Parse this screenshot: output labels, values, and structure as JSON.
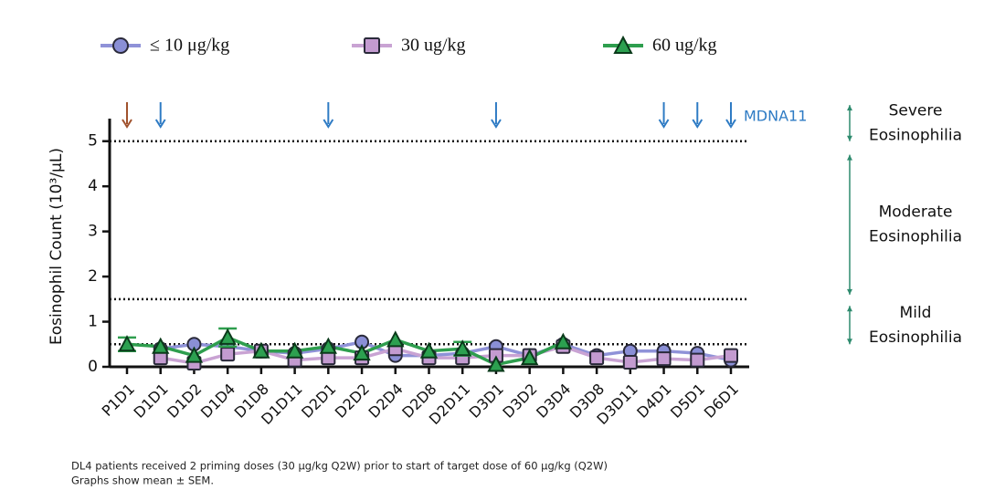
{
  "chart_data": {
    "type": "line",
    "y_label": "Eosinophil Count (10³/μL)",
    "categories": [
      "P1D1",
      "D1D1",
      "D1D2",
      "D1D4",
      "D1D8",
      "D1D11",
      "D2D1",
      "D2D2",
      "D2D4",
      "D2D8",
      "D2D11",
      "D3D1",
      "D3D2",
      "D3D4",
      "D3D8",
      "D3D11",
      "D4D1",
      "D5D1",
      "D6D1"
    ],
    "series": [
      {
        "name": "≤ 10 μg/kg",
        "color": "#8f92d8",
        "marker_color": "#8a8fd6",
        "marker": "circle",
        "values": [
          null,
          0.4,
          0.5,
          0.45,
          0.35,
          0.3,
          0.4,
          0.55,
          0.25,
          0.25,
          0.3,
          0.45,
          0.25,
          0.5,
          0.25,
          0.35,
          0.35,
          0.3,
          0.15
        ]
      },
      {
        "name": "30 ug/kg",
        "color": "#c9a3d3",
        "marker_color": "#c39bd0",
        "marker": "square",
        "values": [
          null,
          0.2,
          0.08,
          0.28,
          0.35,
          0.15,
          0.2,
          0.2,
          0.4,
          0.2,
          0.2,
          0.25,
          0.25,
          0.45,
          0.2,
          0.1,
          0.18,
          0.15,
          0.25
        ]
      },
      {
        "name": "60 ug/kg",
        "color": "#2e9e4e",
        "marker_color": "#2ca050",
        "marker": "triangle",
        "values": [
          0.5,
          0.45,
          0.25,
          0.65,
          0.35,
          0.35,
          0.45,
          0.3,
          0.6,
          0.35,
          0.4,
          0.05,
          0.2,
          0.55,
          null,
          null,
          null,
          null,
          null
        ],
        "errors": [
          0.15,
          null,
          null,
          0.2,
          null,
          null,
          null,
          null,
          null,
          null,
          0.15,
          null,
          null,
          null,
          null,
          null,
          null,
          null,
          null
        ]
      }
    ],
    "ylim": [
      0,
      5.5
    ],
    "yticks": [
      0,
      1,
      2,
      3,
      4,
      5
    ],
    "reference_lines": [
      5,
      1.5,
      0.5
    ],
    "dose_arrows": [
      {
        "category": "P1D1",
        "color": "#a0522d"
      },
      {
        "category": "D1D1",
        "color": "#2e7bc4"
      },
      {
        "category": "D2D1",
        "color": "#2e7bc4"
      },
      {
        "category": "D3D1",
        "color": "#2e7bc4"
      },
      {
        "category": "D4D1",
        "color": "#2e7bc4"
      },
      {
        "category": "D5D1",
        "color": "#2e7bc4"
      },
      {
        "category": "D6D1",
        "color": "#2e7bc4"
      }
    ],
    "dose_label": "MDNA11",
    "zones": [
      {
        "label": [
          "Severe",
          "Eosinophilia"
        ],
        "from": 5,
        "to": 5.8
      },
      {
        "label": [
          "Moderate",
          "Eosinophilia"
        ],
        "from": 1.6,
        "to": 4.7
      },
      {
        "label": [
          "Mild",
          "Eosinophilia"
        ],
        "from": 0.5,
        "to": 1.35
      }
    ],
    "footnotes": [
      "DL4 patients received 2 priming doses (30 μg/kg Q2W) prior to start of target dose of 60 μg/kg (Q2W)",
      "Graphs show mean ± SEM."
    ]
  }
}
